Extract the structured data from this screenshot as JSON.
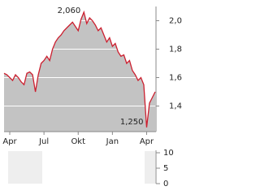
{
  "chart_data": [
    {
      "type": "area",
      "categories": [
        null,
        null,
        "Apr",
        null,
        null,
        null,
        null,
        null,
        null,
        null,
        null,
        null,
        null,
        null,
        "Jul",
        null,
        null,
        null,
        null,
        null,
        null,
        null,
        null,
        null,
        null,
        null,
        "Okt",
        null,
        null,
        null,
        null,
        null,
        null,
        null,
        null,
        null,
        null,
        null,
        "Jan",
        null,
        null,
        null,
        null,
        null,
        null,
        null,
        null,
        null,
        null,
        null,
        "Apr",
        null,
        null,
        null
      ],
      "series": [
        {
          "color": "#cc1f2f",
          "values": [
            1.63,
            1.62,
            1.6,
            1.58,
            1.62,
            1.6,
            1.57,
            1.55,
            1.63,
            1.64,
            1.62,
            1.5,
            1.62,
            1.7,
            1.72,
            1.75,
            1.72,
            1.8,
            1.85,
            1.88,
            1.9,
            1.93,
            1.95,
            1.97,
            1.99,
            1.96,
            1.93,
            2.01,
            2.06,
            1.98,
            2.02,
            2.0,
            1.97,
            1.93,
            1.95,
            1.9,
            1.85,
            1.88,
            1.82,
            1.84,
            1.78,
            1.75,
            1.76,
            1.7,
            1.72,
            1.65,
            1.62,
            1.58,
            1.6,
            1.55,
            1.25,
            1.42,
            1.46,
            1.5
          ]
        }
      ],
      "fill": "#c3c3c3",
      "ylim": [
        1.22,
        2.1
      ],
      "yticks": [
        {
          "value": 1.4,
          "label": "1,4"
        },
        {
          "value": 1.6,
          "label": "1,6"
        },
        {
          "value": 1.8,
          "label": "1,8"
        },
        {
          "value": 2.0,
          "label": "2,0"
        }
      ],
      "grid": true,
      "annotations": [
        {
          "value": 2.06,
          "label": "2,060"
        },
        {
          "value": 1.25,
          "label": "1,250"
        }
      ]
    },
    {
      "type": "bar",
      "ylim": [
        0,
        10
      ],
      "yticks": [
        0,
        5,
        10
      ]
    }
  ]
}
